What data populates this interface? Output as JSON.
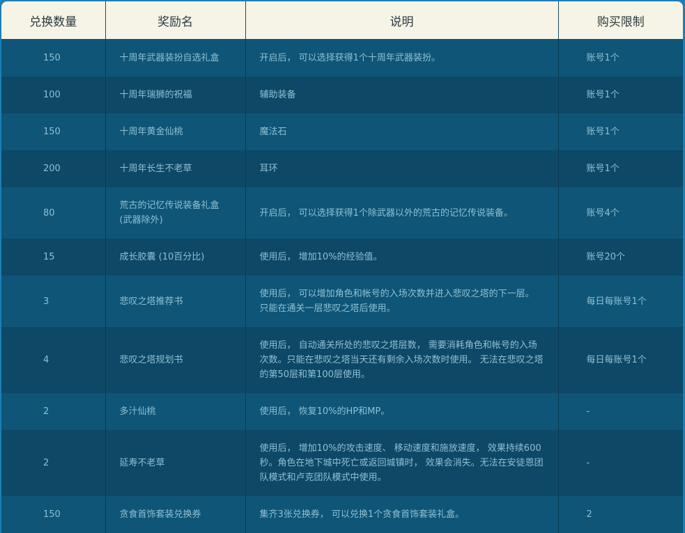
{
  "headers": [
    "兑换数量",
    "奖励名",
    "说明",
    "购买限制"
  ],
  "rows": [
    {
      "qty": "150",
      "name": "十周年武器装扮自选礼盒",
      "desc": "开启后， 可以选择获得1个十周年武器装扮。",
      "limit": "账号1个"
    },
    {
      "qty": "100",
      "name": "十周年瑞狮的祝福",
      "desc": "辅助装备",
      "limit": "账号1个"
    },
    {
      "qty": "150",
      "name": "十周年黄金仙桃",
      "desc": "魔法石",
      "limit": "账号1个"
    },
    {
      "qty": "200",
      "name": "十周年长生不老草",
      "desc": "耳环",
      "limit": "账号1个"
    },
    {
      "qty": "80",
      "name": "荒古的记忆传说装备礼盒(武器除外)",
      "desc": "开启后， 可以选择获得1个除武器以外的荒古的记忆传说装备。",
      "limit": "账号4个"
    },
    {
      "qty": "15",
      "name": "成长胶囊 (10百分比)",
      "desc": "使用后， 增加10%的经验值。",
      "limit": "账号20个"
    },
    {
      "qty": "3",
      "name": "悲叹之塔推荐书",
      "desc": "使用后， 可以增加角色和帐号的入场次数并进入悲叹之塔的下一层。 只能在通关一层悲叹之塔后使用。",
      "limit": "每日每账号1个"
    },
    {
      "qty": "4",
      "name": "悲叹之塔规划书",
      "desc": "使用后， 自动通关所处的悲叹之塔层数， 需要消耗角色和帐号的入场次数。只能在悲叹之塔当天还有剩余入场次数时使用。 无法在悲叹之塔的第50层和第100层使用。",
      "limit": "每日每账号1个"
    },
    {
      "qty": "2",
      "name": "多汁仙桃",
      "desc": "使用后， 恢复10%的HP和MP。",
      "limit": "-"
    },
    {
      "qty": "2",
      "name": "延寿不老草",
      "desc": "使用后， 增加10%的攻击速度、 移动速度和施放速度， 效果持续600秒。角色在地下城中死亡或返回城镇时， 效果会消失。无法在安徒恩团队模式和卢克团队模式中使用。",
      "limit": "-"
    },
    {
      "qty": "150",
      "name": "贪食首饰套装兑换券",
      "desc": "集齐3张兑换券， 可以兑换1个贪食首饰套装礼盒。",
      "limit": "2"
    }
  ],
  "colors": {
    "header_bg": "#f6f4e6",
    "row_light": "#0e5577",
    "row_dark": "#0d4866",
    "text": "#8fc0d4",
    "frame": "#1b7fb6"
  }
}
